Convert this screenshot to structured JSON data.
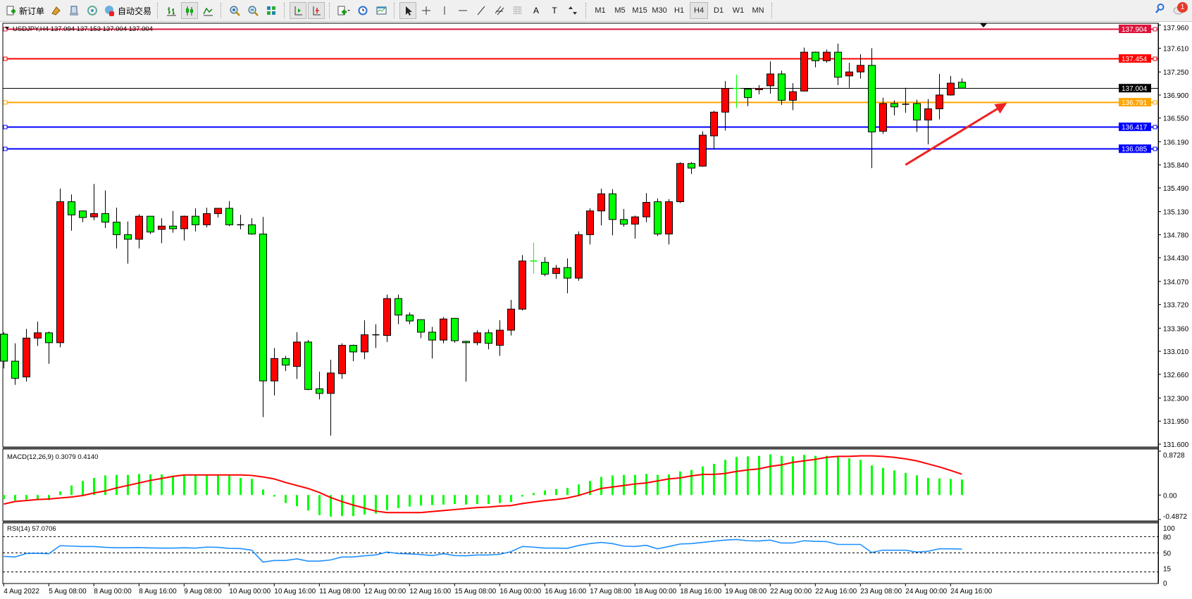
{
  "toolbar": {
    "buttons": [
      {
        "icon": "new-order-icon",
        "label": "新订单"
      },
      {
        "icon": "market-watch-icon",
        "label": ""
      },
      {
        "icon": "navigator-icon",
        "label": ""
      },
      {
        "icon": "signals-icon",
        "label": ""
      },
      {
        "icon": "auto-trading-icon",
        "label": "自动交易"
      },
      {
        "icon": "bar-chart-icon",
        "label": ""
      },
      {
        "icon": "candlestick-icon",
        "label": "",
        "active": true
      },
      {
        "icon": "line-chart-icon",
        "label": ""
      },
      {
        "icon": "zoom-in-icon",
        "label": ""
      },
      {
        "icon": "zoom-out-icon",
        "label": ""
      },
      {
        "icon": "tile-windows-icon",
        "label": ""
      },
      {
        "icon": "chart-shift-icon",
        "label": "",
        "active": true
      },
      {
        "icon": "auto-scroll-icon",
        "label": "",
        "active": true
      },
      {
        "icon": "indicators-icon",
        "label": ""
      },
      {
        "icon": "periods-icon",
        "label": ""
      },
      {
        "icon": "templates-icon",
        "label": ""
      },
      {
        "icon": "cursor-icon",
        "label": "",
        "active": true
      },
      {
        "icon": "crosshair-icon",
        "label": ""
      },
      {
        "icon": "vertical-line-icon",
        "label": ""
      },
      {
        "icon": "horizontal-line-icon",
        "label": ""
      },
      {
        "icon": "trendline-icon",
        "label": ""
      },
      {
        "icon": "equidistant-channel-icon",
        "label": ""
      },
      {
        "icon": "fibonacci-icon",
        "label": ""
      },
      {
        "icon": "text-icon",
        "label": "A"
      },
      {
        "icon": "text-label-icon",
        "label": "T"
      },
      {
        "icon": "arrows-icon",
        "label": ""
      }
    ],
    "timeframes": [
      "M1",
      "M5",
      "M15",
      "M30",
      "H1",
      "H4",
      "D1",
      "W1",
      "MN"
    ],
    "active_timeframe": "H4",
    "notification_count": "1"
  },
  "chart": {
    "title": "USDJPY,H4  137.094 137.153 137.004 137.004",
    "up_color": "#ff0000",
    "down_color": "#00ff00"
  },
  "chart_data": [
    {
      "type": "candlestick",
      "symbol": "USDJPY",
      "timeframe": "H4",
      "ylim": [
        131.6,
        137.96
      ],
      "yticks": [
        137.96,
        137.61,
        137.25,
        136.9,
        136.55,
        136.19,
        135.84,
        135.49,
        135.13,
        134.78,
        134.43,
        134.07,
        133.72,
        133.36,
        133.01,
        132.66,
        132.3,
        131.95,
        131.6
      ],
      "xtick_labels": [
        "4 Aug 2022",
        "5 Aug 08:00",
        "8 Aug 00:00",
        "8 Aug 16:00",
        "9 Aug 08:00",
        "10 Aug 00:00",
        "10 Aug 16:00",
        "11 Aug 08:00",
        "12 Aug 00:00",
        "12 Aug 16:00",
        "15 Aug 08:00",
        "16 Aug 00:00",
        "16 Aug 16:00",
        "17 Aug 08:00",
        "18 Aug 00:00",
        "18 Aug 16:00",
        "19 Aug 08:00",
        "22 Aug 00:00",
        "22 Aug 16:00",
        "23 Aug 08:00",
        "24 Aug 00:00",
        "24 Aug 16:00"
      ],
      "ohlc": [
        [
          133.27,
          133.3,
          132.75,
          132.86
        ],
        [
          132.86,
          133.13,
          132.5,
          132.6
        ],
        [
          132.62,
          133.35,
          132.55,
          133.21
        ],
        [
          133.21,
          133.46,
          133.09,
          133.29
        ],
        [
          133.29,
          133.31,
          132.82,
          133.14
        ],
        [
          133.14,
          135.48,
          133.07,
          135.28
        ],
        [
          135.28,
          135.39,
          134.84,
          135.08
        ],
        [
          135.14,
          135.14,
          134.97,
          135.04
        ],
        [
          135.05,
          135.55,
          135.0,
          135.1
        ],
        [
          135.1,
          135.45,
          134.88,
          134.97
        ],
        [
          134.97,
          135.19,
          134.57,
          134.78
        ],
        [
          134.78,
          134.98,
          134.34,
          134.71
        ],
        [
          134.71,
          135.09,
          134.57,
          135.06
        ],
        [
          135.06,
          135.06,
          134.79,
          134.82
        ],
        [
          134.86,
          135.03,
          134.65,
          134.91
        ],
        [
          134.91,
          135.14,
          134.81,
          134.87
        ],
        [
          134.87,
          135.07,
          134.69,
          135.06
        ],
        [
          135.06,
          135.18,
          134.83,
          134.93
        ],
        [
          134.93,
          135.19,
          134.89,
          135.1
        ],
        [
          135.1,
          135.18,
          135.04,
          135.18
        ],
        [
          135.18,
          135.29,
          134.91,
          134.93
        ],
        [
          134.93,
          135.08,
          134.86,
          134.93
        ],
        [
          134.93,
          135.03,
          134.78,
          134.79
        ],
        [
          134.79,
          135.05,
          132.01,
          132.56
        ],
        [
          132.56,
          133.06,
          132.34,
          132.9
        ],
        [
          132.9,
          132.94,
          132.71,
          132.8
        ],
        [
          132.78,
          133.3,
          132.59,
          133.15
        ],
        [
          133.15,
          133.18,
          132.42,
          132.43
        ],
        [
          132.44,
          132.7,
          132.28,
          132.37
        ],
        [
          132.37,
          132.88,
          131.73,
          132.68
        ],
        [
          132.67,
          133.13,
          132.59,
          133.1
        ],
        [
          133.1,
          133.11,
          132.86,
          133.0
        ],
        [
          133.0,
          133.48,
          132.89,
          133.26
        ],
        [
          133.26,
          133.42,
          133.06,
          133.26
        ],
        [
          133.25,
          133.87,
          133.15,
          133.81
        ],
        [
          133.81,
          133.87,
          133.42,
          133.56
        ],
        [
          133.56,
          133.6,
          133.42,
          133.47
        ],
        [
          133.49,
          133.49,
          133.21,
          133.3
        ],
        [
          133.3,
          133.38,
          132.9,
          133.18
        ],
        [
          133.18,
          133.53,
          133.13,
          133.5
        ],
        [
          133.51,
          133.51,
          133.14,
          133.17
        ],
        [
          133.16,
          133.17,
          132.55,
          133.14
        ],
        [
          133.14,
          133.33,
          133.1,
          133.29
        ],
        [
          133.29,
          133.34,
          133.04,
          133.13
        ],
        [
          133.1,
          133.48,
          132.94,
          133.33
        ],
        [
          133.33,
          133.79,
          133.25,
          133.65
        ],
        [
          133.65,
          134.47,
          133.63,
          134.38
        ],
        [
          134.38,
          134.66,
          134.19,
          134.37
        ],
        [
          134.36,
          134.44,
          134.15,
          134.18
        ],
        [
          134.19,
          134.32,
          134.11,
          134.27
        ],
        [
          134.28,
          134.42,
          133.89,
          134.12
        ],
        [
          134.12,
          134.83,
          134.08,
          134.78
        ],
        [
          134.78,
          135.18,
          134.63,
          135.14
        ],
        [
          135.14,
          135.48,
          134.92,
          135.4
        ],
        [
          135.4,
          135.47,
          134.77,
          135.01
        ],
        [
          135.01,
          135.17,
          134.9,
          134.94
        ],
        [
          134.94,
          135.07,
          134.72,
          135.05
        ],
        [
          135.05,
          135.41,
          134.97,
          135.27
        ],
        [
          135.28,
          135.33,
          134.76,
          134.79
        ],
        [
          134.79,
          135.32,
          134.63,
          135.28
        ],
        [
          135.28,
          135.88,
          135.26,
          135.86
        ],
        [
          135.86,
          135.88,
          135.7,
          135.79
        ],
        [
          135.82,
          136.35,
          135.81,
          136.29
        ],
        [
          136.28,
          136.66,
          136.08,
          136.64
        ],
        [
          136.64,
          137.11,
          136.36,
          137.0
        ],
        [
          137.0,
          137.21,
          136.7,
          136.99
        ],
        [
          136.99,
          137.0,
          136.73,
          136.86
        ],
        [
          136.98,
          137.05,
          136.91,
          137.0
        ],
        [
          137.04,
          137.41,
          136.92,
          137.22
        ],
        [
          137.22,
          137.27,
          136.75,
          136.82
        ],
        [
          136.82,
          137.08,
          136.67,
          136.95
        ],
        [
          136.96,
          137.62,
          136.95,
          137.55
        ],
        [
          137.55,
          137.56,
          137.32,
          137.42
        ],
        [
          137.42,
          137.59,
          137.39,
          137.55
        ],
        [
          137.55,
          137.68,
          137.05,
          137.17
        ],
        [
          137.19,
          137.39,
          137.01,
          137.25
        ],
        [
          137.25,
          137.52,
          137.15,
          137.35
        ],
        [
          137.35,
          137.61,
          135.79,
          136.34
        ],
        [
          136.35,
          136.86,
          136.31,
          136.77
        ],
        [
          136.77,
          136.82,
          136.59,
          136.72
        ],
        [
          136.76,
          137.01,
          136.63,
          136.77
        ],
        [
          136.77,
          136.83,
          136.34,
          136.52
        ],
        [
          136.52,
          136.84,
          136.15,
          136.69
        ],
        [
          136.69,
          137.22,
          136.53,
          136.9
        ],
        [
          136.9,
          137.19,
          136.89,
          137.08
        ],
        [
          137.094,
          137.153,
          137.004,
          137.004
        ]
      ],
      "horizontal_lines": [
        {
          "price": "137.904",
          "color": "#dc143c"
        },
        {
          "price": "137.454",
          "color": "#ff0000"
        },
        {
          "price": "137.004",
          "color": "#000000",
          "bid": true
        },
        {
          "price": "136.791",
          "color": "#ffa500"
        },
        {
          "price": "136.417",
          "color": "#0000ff"
        },
        {
          "price": "136.085",
          "color": "#0000ff"
        }
      ],
      "arrow_annotation": {
        "color": "#ee2222",
        "from_bar": 80,
        "from_price": 135.84,
        "to_bar": 89,
        "to_price": 136.78
      }
    },
    {
      "type": "bar+line",
      "label": "MACD(12,26,9) 0.3079 0.4140",
      "ylim": [
        -0.4872,
        0.8728
      ],
      "yticks": [
        "0.8728",
        "0.00",
        "-0.4872"
      ],
      "histogram_color": "#00ff00",
      "signal_color": "#ff0000",
      "histogram": [
        -0.08,
        -0.11,
        -0.09,
        -0.08,
        -0.1,
        0.07,
        0.19,
        0.28,
        0.34,
        0.39,
        0.4,
        0.4,
        0.42,
        0.41,
        0.41,
        0.39,
        0.39,
        0.39,
        0.39,
        0.39,
        0.39,
        0.34,
        0.32,
        0.11,
        -0.03,
        -0.16,
        -0.22,
        -0.31,
        -0.4,
        -0.43,
        -0.42,
        -0.42,
        -0.39,
        -0.37,
        -0.3,
        -0.26,
        -0.23,
        -0.21,
        -0.2,
        -0.19,
        -0.18,
        -0.19,
        -0.18,
        -0.18,
        -0.16,
        -0.14,
        -0.03,
        0.04,
        0.09,
        0.12,
        0.14,
        0.21,
        0.28,
        0.36,
        0.39,
        0.4,
        0.4,
        0.42,
        0.4,
        0.41,
        0.47,
        0.5,
        0.57,
        0.62,
        0.7,
        0.76,
        0.77,
        0.78,
        0.81,
        0.78,
        0.77,
        0.8,
        0.78,
        0.78,
        0.76,
        0.73,
        0.7,
        0.59,
        0.54,
        0.49,
        0.44,
        0.39,
        0.34,
        0.33,
        0.32,
        0.3079
      ],
      "signal": [
        -0.18,
        -0.13,
        -0.11,
        -0.09,
        -0.08,
        -0.06,
        -0.04,
        -0.01,
        0.04,
        0.08,
        0.14,
        0.19,
        0.24,
        0.29,
        0.33,
        0.37,
        0.4,
        0.4,
        0.4,
        0.4,
        0.4,
        0.4,
        0.39,
        0.36,
        0.32,
        0.25,
        0.19,
        0.13,
        0.05,
        -0.05,
        -0.13,
        -0.2,
        -0.26,
        -0.32,
        -0.35,
        -0.35,
        -0.35,
        -0.35,
        -0.33,
        -0.31,
        -0.29,
        -0.27,
        -0.25,
        -0.24,
        -0.22,
        -0.21,
        -0.17,
        -0.14,
        -0.11,
        -0.09,
        -0.06,
        -0.01,
        0.06,
        0.13,
        0.16,
        0.19,
        0.22,
        0.24,
        0.28,
        0.32,
        0.34,
        0.38,
        0.41,
        0.41,
        0.43,
        0.47,
        0.5,
        0.52,
        0.57,
        0.6,
        0.65,
        0.68,
        0.71,
        0.75,
        0.77,
        0.77,
        0.78,
        0.78,
        0.77,
        0.75,
        0.72,
        0.68,
        0.62,
        0.56,
        0.49,
        0.414
      ]
    },
    {
      "type": "line",
      "label": "RSI(14) 57.0706",
      "ylim": [
        0,
        100
      ],
      "yticks": [
        "100",
        "80",
        "50",
        "15",
        "0"
      ],
      "levels": [
        80,
        50,
        15
      ],
      "color": "#1e90ff",
      "values": [
        43.6,
        42.4,
        48.9,
        49.3,
        48.5,
        63.3,
        62.5,
        61.8,
        61.8,
        60.3,
        59.5,
        59.5,
        59.8,
        59.2,
        58.8,
        58.8,
        59.5,
        58.8,
        60.7,
        60.3,
        58.4,
        58.0,
        55.0,
        33.0,
        36.0,
        36.0,
        39.0,
        34.8,
        34.8,
        37.0,
        42.4,
        42.4,
        44.7,
        46.2,
        51.5,
        48.9,
        48.1,
        47.0,
        45.0,
        48.5,
        45.0,
        44.7,
        46.2,
        46.2,
        47.4,
        52.3,
        61.8,
        60.7,
        58.8,
        58.8,
        58.4,
        63.7,
        67.1,
        69.4,
        67.1,
        62.5,
        61.8,
        64.0,
        57.6,
        61.8,
        66.4,
        67.1,
        69.4,
        71.7,
        73.6,
        74.7,
        72.4,
        72.0,
        73.6,
        68.2,
        68.2,
        72.4,
        71.3,
        70.9,
        65.6,
        65.6,
        65.6,
        50.8,
        55.0,
        55.0,
        55.0,
        51.5,
        53.0,
        57.6,
        57.6,
        57.0706
      ]
    }
  ]
}
